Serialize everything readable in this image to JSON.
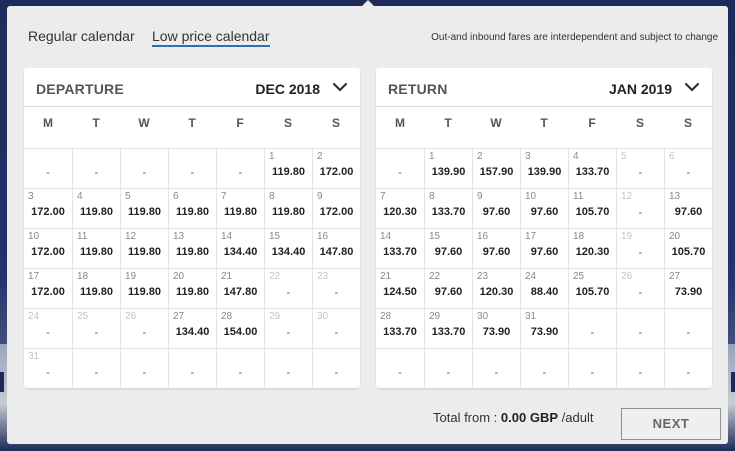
{
  "tabs": [
    {
      "label": "Regular calendar",
      "active": false
    },
    {
      "label": "Low price calendar",
      "active": true
    }
  ],
  "note": "Out-and inbound fares are interdependent and subject to change",
  "weekdays": [
    "M",
    "T",
    "W",
    "T",
    "F",
    "S",
    "S"
  ],
  "departure": {
    "title": "DEPARTURE",
    "month": "DEC 2018",
    "weeks": [
      [
        {
          "d": "",
          "p": "-"
        },
        {
          "d": "",
          "p": "-"
        },
        {
          "d": "",
          "p": "-"
        },
        {
          "d": "",
          "p": "-"
        },
        {
          "d": "",
          "p": "-"
        },
        {
          "d": "1",
          "p": "119.80"
        },
        {
          "d": "2",
          "p": "172.00"
        }
      ],
      [
        {
          "d": "3",
          "p": "172.00"
        },
        {
          "d": "4",
          "p": "119.80"
        },
        {
          "d": "5",
          "p": "119.80"
        },
        {
          "d": "6",
          "p": "119.80"
        },
        {
          "d": "7",
          "p": "119.80"
        },
        {
          "d": "8",
          "p": "119.80"
        },
        {
          "d": "9",
          "p": "172.00"
        }
      ],
      [
        {
          "d": "10",
          "p": "172.00"
        },
        {
          "d": "11",
          "p": "119.80"
        },
        {
          "d": "12",
          "p": "119.80"
        },
        {
          "d": "13",
          "p": "119.80"
        },
        {
          "d": "14",
          "p": "134.40"
        },
        {
          "d": "15",
          "p": "134.40"
        },
        {
          "d": "16",
          "p": "147.80"
        }
      ],
      [
        {
          "d": "17",
          "p": "172.00"
        },
        {
          "d": "18",
          "p": "119.80"
        },
        {
          "d": "19",
          "p": "119.80"
        },
        {
          "d": "20",
          "p": "119.80"
        },
        {
          "d": "21",
          "p": "147.80"
        },
        {
          "d": "22",
          "p": "-",
          "off": true
        },
        {
          "d": "23",
          "p": "-",
          "off": true
        }
      ],
      [
        {
          "d": "24",
          "p": "-",
          "off": true
        },
        {
          "d": "25",
          "p": "-",
          "off": true
        },
        {
          "d": "26",
          "p": "-",
          "off": true
        },
        {
          "d": "27",
          "p": "134.40"
        },
        {
          "d": "28",
          "p": "154.00"
        },
        {
          "d": "29",
          "p": "-",
          "off": true
        },
        {
          "d": "30",
          "p": "-",
          "off": true
        }
      ],
      [
        {
          "d": "31",
          "p": "-",
          "off": true
        },
        {
          "d": "",
          "p": "-"
        },
        {
          "d": "",
          "p": "-"
        },
        {
          "d": "",
          "p": "-"
        },
        {
          "d": "",
          "p": "-"
        },
        {
          "d": "",
          "p": "-"
        },
        {
          "d": "",
          "p": "-"
        }
      ]
    ]
  },
  "return": {
    "title": "RETURN",
    "month": "JAN 2019",
    "weeks": [
      [
        {
          "d": "",
          "p": "-"
        },
        {
          "d": "1",
          "p": "139.90"
        },
        {
          "d": "2",
          "p": "157.90"
        },
        {
          "d": "3",
          "p": "139.90"
        },
        {
          "d": "4",
          "p": "133.70"
        },
        {
          "d": "5",
          "p": "-",
          "off": true
        },
        {
          "d": "6",
          "p": "-",
          "off": true
        }
      ],
      [
        {
          "d": "7",
          "p": "120.30"
        },
        {
          "d": "8",
          "p": "133.70"
        },
        {
          "d": "9",
          "p": "97.60"
        },
        {
          "d": "10",
          "p": "97.60"
        },
        {
          "d": "11",
          "p": "105.70"
        },
        {
          "d": "12",
          "p": "-",
          "off": true
        },
        {
          "d": "13",
          "p": "97.60"
        }
      ],
      [
        {
          "d": "14",
          "p": "133.70"
        },
        {
          "d": "15",
          "p": "97.60"
        },
        {
          "d": "16",
          "p": "97.60"
        },
        {
          "d": "17",
          "p": "97.60"
        },
        {
          "d": "18",
          "p": "120.30"
        },
        {
          "d": "19",
          "p": "-",
          "off": true
        },
        {
          "d": "20",
          "p": "105.70"
        }
      ],
      [
        {
          "d": "21",
          "p": "124.50"
        },
        {
          "d": "22",
          "p": "97.60"
        },
        {
          "d": "23",
          "p": "120.30"
        },
        {
          "d": "24",
          "p": "88.40"
        },
        {
          "d": "25",
          "p": "105.70"
        },
        {
          "d": "26",
          "p": "-",
          "off": true
        },
        {
          "d": "27",
          "p": "73.90"
        }
      ],
      [
        {
          "d": "28",
          "p": "133.70"
        },
        {
          "d": "29",
          "p": "133.70"
        },
        {
          "d": "30",
          "p": "73.90"
        },
        {
          "d": "31",
          "p": "73.90"
        },
        {
          "d": "",
          "p": "-"
        },
        {
          "d": "",
          "p": "-"
        },
        {
          "d": "",
          "p": "-"
        }
      ],
      [
        {
          "d": "",
          "p": "-"
        },
        {
          "d": "",
          "p": "-"
        },
        {
          "d": "",
          "p": "-"
        },
        {
          "d": "",
          "p": "-"
        },
        {
          "d": "",
          "p": "-"
        },
        {
          "d": "",
          "p": "-"
        },
        {
          "d": "",
          "p": "-"
        }
      ]
    ]
  },
  "footer": {
    "total_label": "Total from :",
    "total_amount": "0.00 GBP",
    "total_suffix": "/adult",
    "next_label": "NEXT"
  },
  "colors": {
    "panel_bg": "#ececec",
    "accent_underline": "#2f6fb8",
    "text_dark": "#222222"
  }
}
